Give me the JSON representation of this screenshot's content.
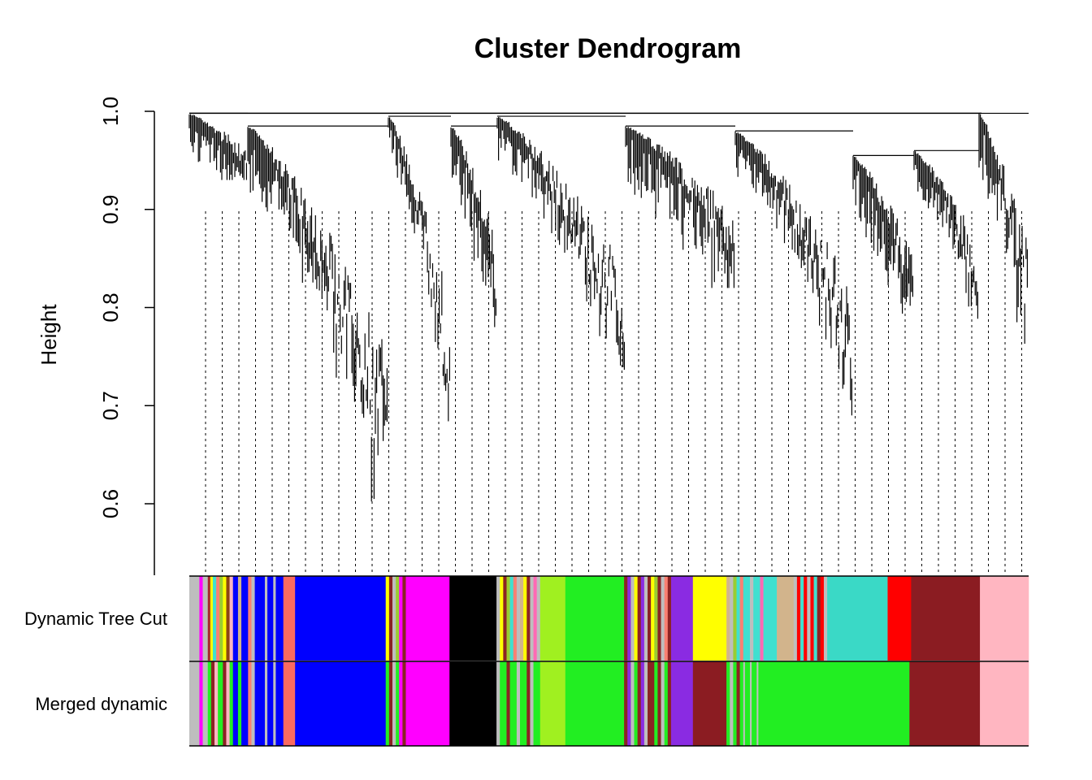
{
  "chart_data": {
    "type": "dendrogram",
    "title": "Cluster Dendrogram",
    "ylabel": "Height",
    "xlabel": "",
    "ylim": [
      0.53,
      1.0
    ],
    "yticks": [
      0.6,
      0.7,
      0.8,
      0.9,
      1.0
    ],
    "ytick_labels": [
      "0.6",
      "0.7",
      "0.8",
      "0.9",
      "1.0"
    ],
    "grid": false,
    "color_rows": [
      {
        "label": "Dynamic Tree Cut",
        "segments": [
          {
            "color": "#bebebe",
            "start": 0.0,
            "end": 0.012
          },
          {
            "color": "#ff00ff",
            "start": 0.012,
            "end": 0.016
          },
          {
            "color": "#bebebe",
            "start": 0.016,
            "end": 0.022
          },
          {
            "color": "#a52a2a",
            "start": 0.022,
            "end": 0.025
          },
          {
            "color": "#ffff00",
            "start": 0.025,
            "end": 0.028
          },
          {
            "color": "#40e0d0",
            "start": 0.028,
            "end": 0.032
          },
          {
            "color": "#fa8072",
            "start": 0.032,
            "end": 0.036
          },
          {
            "color": "#9acd32",
            "start": 0.036,
            "end": 0.04
          },
          {
            "color": "#ffff00",
            "start": 0.04,
            "end": 0.044
          },
          {
            "color": "#8b4513",
            "start": 0.044,
            "end": 0.048
          },
          {
            "color": "#ffb6c1",
            "start": 0.048,
            "end": 0.052
          },
          {
            "color": "#0000ff",
            "start": 0.052,
            "end": 0.058
          },
          {
            "color": "#d2b48c",
            "start": 0.058,
            "end": 0.062
          },
          {
            "color": "#0000ff",
            "start": 0.062,
            "end": 0.07
          },
          {
            "color": "#fa8072",
            "start": 0.07,
            "end": 0.074
          },
          {
            "color": "#bebebe",
            "start": 0.074,
            "end": 0.078
          },
          {
            "color": "#0000ff",
            "start": 0.078,
            "end": 0.09
          },
          {
            "color": "#bebebe",
            "start": 0.09,
            "end": 0.093
          },
          {
            "color": "#0000ff",
            "start": 0.093,
            "end": 0.1
          },
          {
            "color": "#bebebe",
            "start": 0.1,
            "end": 0.103
          },
          {
            "color": "#0000ff",
            "start": 0.103,
            "end": 0.112
          },
          {
            "color": "#fa6a60",
            "start": 0.112,
            "end": 0.126
          },
          {
            "color": "#0000ff",
            "start": 0.126,
            "end": 0.234
          },
          {
            "color": "#ffff00",
            "start": 0.234,
            "end": 0.238
          },
          {
            "color": "#8b2323",
            "start": 0.238,
            "end": 0.242
          },
          {
            "color": "#bebebe",
            "start": 0.242,
            "end": 0.246
          },
          {
            "color": "#9acd32",
            "start": 0.246,
            "end": 0.25
          },
          {
            "color": "#ff00ff",
            "start": 0.25,
            "end": 0.254
          },
          {
            "color": "#8b2323",
            "start": 0.254,
            "end": 0.258
          },
          {
            "color": "#ff00ff",
            "start": 0.258,
            "end": 0.31
          },
          {
            "color": "#000000",
            "start": 0.31,
            "end": 0.366
          },
          {
            "color": "#bebebe",
            "start": 0.366,
            "end": 0.37
          },
          {
            "color": "#ffff00",
            "start": 0.37,
            "end": 0.374
          },
          {
            "color": "#8b2323",
            "start": 0.374,
            "end": 0.378
          },
          {
            "color": "#9acd32",
            "start": 0.378,
            "end": 0.382
          },
          {
            "color": "#40e0d0",
            "start": 0.382,
            "end": 0.386
          },
          {
            "color": "#fa8072",
            "start": 0.386,
            "end": 0.39
          },
          {
            "color": "#bebebe",
            "start": 0.39,
            "end": 0.394
          },
          {
            "color": "#d2b48c",
            "start": 0.394,
            "end": 0.398
          },
          {
            "color": "#ffff00",
            "start": 0.398,
            "end": 0.402
          },
          {
            "color": "#8b2323",
            "start": 0.402,
            "end": 0.406
          },
          {
            "color": "#bebebe",
            "start": 0.406,
            "end": 0.41
          },
          {
            "color": "#ff69b4",
            "start": 0.41,
            "end": 0.414
          },
          {
            "color": "#bebebe",
            "start": 0.414,
            "end": 0.418
          },
          {
            "color": "#a0f020",
            "start": 0.418,
            "end": 0.448
          },
          {
            "color": "#22ee22",
            "start": 0.448,
            "end": 0.518
          },
          {
            "color": "#8b2323",
            "start": 0.518,
            "end": 0.522
          },
          {
            "color": "#8a2be2",
            "start": 0.522,
            "end": 0.526
          },
          {
            "color": "#bebebe",
            "start": 0.526,
            "end": 0.53
          },
          {
            "color": "#ffff00",
            "start": 0.53,
            "end": 0.534
          },
          {
            "color": "#8b2323",
            "start": 0.534,
            "end": 0.538
          },
          {
            "color": "#8a2be2",
            "start": 0.538,
            "end": 0.542
          },
          {
            "color": "#bebebe",
            "start": 0.542,
            "end": 0.546
          },
          {
            "color": "#8b2323",
            "start": 0.546,
            "end": 0.55
          },
          {
            "color": "#ffff00",
            "start": 0.55,
            "end": 0.554
          },
          {
            "color": "#9acd32",
            "start": 0.554,
            "end": 0.558
          },
          {
            "color": "#8b2323",
            "start": 0.558,
            "end": 0.562
          },
          {
            "color": "#bebebe",
            "start": 0.562,
            "end": 0.566
          },
          {
            "color": "#fa8072",
            "start": 0.566,
            "end": 0.57
          },
          {
            "color": "#8b2323",
            "start": 0.57,
            "end": 0.574
          },
          {
            "color": "#8a2be2",
            "start": 0.574,
            "end": 0.6
          },
          {
            "color": "#ffff00",
            "start": 0.6,
            "end": 0.64
          },
          {
            "color": "#d2b48c",
            "start": 0.64,
            "end": 0.644
          },
          {
            "color": "#bebebe",
            "start": 0.644,
            "end": 0.648
          },
          {
            "color": "#9acd32",
            "start": 0.648,
            "end": 0.652
          },
          {
            "color": "#40e0d0",
            "start": 0.652,
            "end": 0.656
          },
          {
            "color": "#fa8072",
            "start": 0.656,
            "end": 0.66
          },
          {
            "color": "#40e0d0",
            "start": 0.66,
            "end": 0.668
          },
          {
            "color": "#bebebe",
            "start": 0.668,
            "end": 0.672
          },
          {
            "color": "#40e0d0",
            "start": 0.672,
            "end": 0.68
          },
          {
            "color": "#ff69b4",
            "start": 0.68,
            "end": 0.684
          },
          {
            "color": "#40e0d0",
            "start": 0.684,
            "end": 0.7
          },
          {
            "color": "#d2b48c",
            "start": 0.7,
            "end": 0.72
          },
          {
            "color": "#bebebe",
            "start": 0.72,
            "end": 0.724
          },
          {
            "color": "#ff0000",
            "start": 0.724,
            "end": 0.728
          },
          {
            "color": "#40e0d0",
            "start": 0.728,
            "end": 0.732
          },
          {
            "color": "#ff0000",
            "start": 0.732,
            "end": 0.736
          },
          {
            "color": "#bebebe",
            "start": 0.736,
            "end": 0.74
          },
          {
            "color": "#ff0000",
            "start": 0.74,
            "end": 0.744
          },
          {
            "color": "#40e0d0",
            "start": 0.744,
            "end": 0.748
          },
          {
            "color": "#8b2323",
            "start": 0.748,
            "end": 0.752
          },
          {
            "color": "#ff0000",
            "start": 0.752,
            "end": 0.756
          },
          {
            "color": "#bebebe",
            "start": 0.756,
            "end": 0.76
          },
          {
            "color": "#3ad9c6",
            "start": 0.76,
            "end": 0.832
          },
          {
            "color": "#ff0000",
            "start": 0.832,
            "end": 0.86
          },
          {
            "color": "#8b1c22",
            "start": 0.86,
            "end": 0.942
          },
          {
            "color": "#ffb6c1",
            "start": 0.942,
            "end": 1.0
          }
        ]
      },
      {
        "label": "Merged dynamic",
        "segments": [
          {
            "color": "#bebebe",
            "start": 0.0,
            "end": 0.012
          },
          {
            "color": "#ff00ff",
            "start": 0.012,
            "end": 0.016
          },
          {
            "color": "#bebebe",
            "start": 0.016,
            "end": 0.022
          },
          {
            "color": "#22ee22",
            "start": 0.022,
            "end": 0.026
          },
          {
            "color": "#8b2323",
            "start": 0.026,
            "end": 0.03
          },
          {
            "color": "#ffb6c1",
            "start": 0.03,
            "end": 0.034
          },
          {
            "color": "#22ee22",
            "start": 0.034,
            "end": 0.04
          },
          {
            "color": "#8b2323",
            "start": 0.04,
            "end": 0.044
          },
          {
            "color": "#ffb6c1",
            "start": 0.044,
            "end": 0.048
          },
          {
            "color": "#22ee22",
            "start": 0.048,
            "end": 0.052
          },
          {
            "color": "#0000ff",
            "start": 0.052,
            "end": 0.058
          },
          {
            "color": "#22ee22",
            "start": 0.058,
            "end": 0.062
          },
          {
            "color": "#0000ff",
            "start": 0.062,
            "end": 0.07
          },
          {
            "color": "#fa8072",
            "start": 0.07,
            "end": 0.074
          },
          {
            "color": "#bebebe",
            "start": 0.074,
            "end": 0.078
          },
          {
            "color": "#0000ff",
            "start": 0.078,
            "end": 0.09
          },
          {
            "color": "#bebebe",
            "start": 0.09,
            "end": 0.093
          },
          {
            "color": "#0000ff",
            "start": 0.093,
            "end": 0.1
          },
          {
            "color": "#bebebe",
            "start": 0.1,
            "end": 0.103
          },
          {
            "color": "#0000ff",
            "start": 0.103,
            "end": 0.112
          },
          {
            "color": "#fa6a60",
            "start": 0.112,
            "end": 0.126
          },
          {
            "color": "#0000ff",
            "start": 0.126,
            "end": 0.234
          },
          {
            "color": "#22ee22",
            "start": 0.234,
            "end": 0.238
          },
          {
            "color": "#8b2323",
            "start": 0.238,
            "end": 0.242
          },
          {
            "color": "#bebebe",
            "start": 0.242,
            "end": 0.246
          },
          {
            "color": "#22ee22",
            "start": 0.246,
            "end": 0.25
          },
          {
            "color": "#ff00ff",
            "start": 0.25,
            "end": 0.254
          },
          {
            "color": "#8b2323",
            "start": 0.254,
            "end": 0.258
          },
          {
            "color": "#ff00ff",
            "start": 0.258,
            "end": 0.31
          },
          {
            "color": "#000000",
            "start": 0.31,
            "end": 0.366
          },
          {
            "color": "#bebebe",
            "start": 0.366,
            "end": 0.37
          },
          {
            "color": "#22ee22",
            "start": 0.37,
            "end": 0.378
          },
          {
            "color": "#8b2323",
            "start": 0.378,
            "end": 0.382
          },
          {
            "color": "#22ee22",
            "start": 0.382,
            "end": 0.39
          },
          {
            "color": "#bebebe",
            "start": 0.39,
            "end": 0.394
          },
          {
            "color": "#22ee22",
            "start": 0.394,
            "end": 0.402
          },
          {
            "color": "#8b2323",
            "start": 0.402,
            "end": 0.406
          },
          {
            "color": "#bebebe",
            "start": 0.406,
            "end": 0.41
          },
          {
            "color": "#22ee22",
            "start": 0.41,
            "end": 0.418
          },
          {
            "color": "#a0f020",
            "start": 0.418,
            "end": 0.448
          },
          {
            "color": "#22ee22",
            "start": 0.448,
            "end": 0.518
          },
          {
            "color": "#8b2323",
            "start": 0.518,
            "end": 0.522
          },
          {
            "color": "#8a2be2",
            "start": 0.522,
            "end": 0.526
          },
          {
            "color": "#bebebe",
            "start": 0.526,
            "end": 0.53
          },
          {
            "color": "#22ee22",
            "start": 0.53,
            "end": 0.534
          },
          {
            "color": "#8b2323",
            "start": 0.534,
            "end": 0.538
          },
          {
            "color": "#8a2be2",
            "start": 0.538,
            "end": 0.542
          },
          {
            "color": "#bebebe",
            "start": 0.542,
            "end": 0.546
          },
          {
            "color": "#8b2323",
            "start": 0.546,
            "end": 0.554
          },
          {
            "color": "#22ee22",
            "start": 0.554,
            "end": 0.558
          },
          {
            "color": "#8b2323",
            "start": 0.558,
            "end": 0.562
          },
          {
            "color": "#bebebe",
            "start": 0.562,
            "end": 0.566
          },
          {
            "color": "#22ee22",
            "start": 0.566,
            "end": 0.57
          },
          {
            "color": "#8b2323",
            "start": 0.57,
            "end": 0.574
          },
          {
            "color": "#8a2be2",
            "start": 0.574,
            "end": 0.6
          },
          {
            "color": "#8b1c22",
            "start": 0.6,
            "end": 0.64
          },
          {
            "color": "#22ee22",
            "start": 0.64,
            "end": 0.644
          },
          {
            "color": "#bebebe",
            "start": 0.644,
            "end": 0.648
          },
          {
            "color": "#22ee22",
            "start": 0.648,
            "end": 0.652
          },
          {
            "color": "#8b2323",
            "start": 0.652,
            "end": 0.656
          },
          {
            "color": "#22ee22",
            "start": 0.656,
            "end": 0.66
          },
          {
            "color": "#bebebe",
            "start": 0.66,
            "end": 0.662
          },
          {
            "color": "#22ee22",
            "start": 0.662,
            "end": 0.668
          },
          {
            "color": "#bebebe",
            "start": 0.668,
            "end": 0.67
          },
          {
            "color": "#22ee22",
            "start": 0.67,
            "end": 0.676
          },
          {
            "color": "#bebebe",
            "start": 0.676,
            "end": 0.678
          },
          {
            "color": "#22ee22",
            "start": 0.678,
            "end": 0.858
          },
          {
            "color": "#8b1c22",
            "start": 0.858,
            "end": 0.942
          },
          {
            "color": "#ffb6c1",
            "start": 0.942,
            "end": 1.0
          }
        ]
      }
    ]
  }
}
